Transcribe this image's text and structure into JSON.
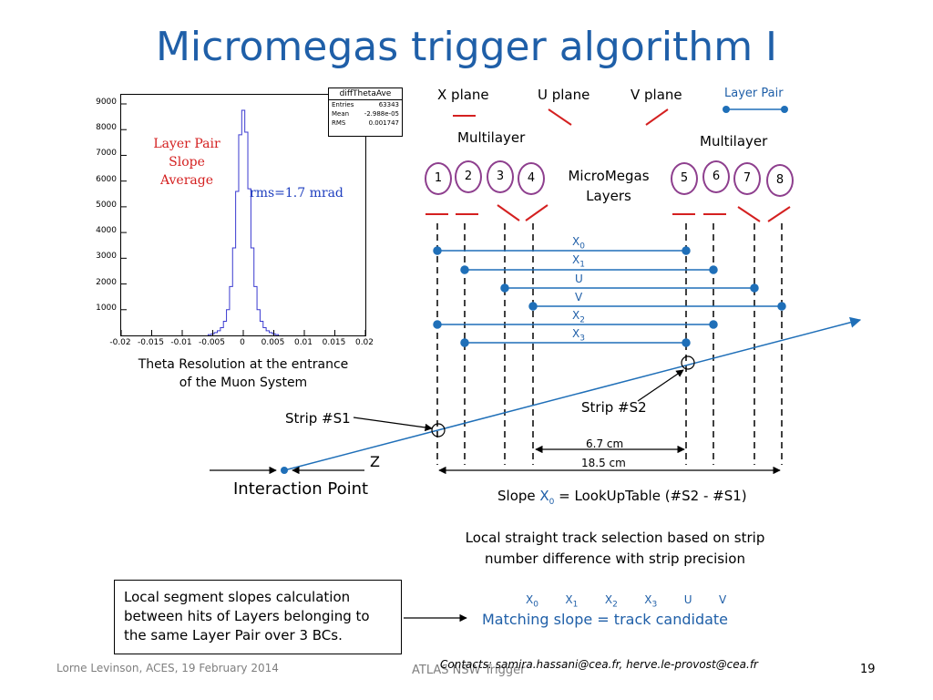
{
  "title": "Micromegas trigger algorithm I",
  "histogram": {
    "stats_title": "diffThetaAve",
    "stats": [
      {
        "name": "Entries",
        "value": "63343"
      },
      {
        "name": "Mean",
        "value": "-2.988e-05"
      },
      {
        "name": "RMS",
        "value": "0.001747"
      }
    ],
    "annotation_lines": [
      "Layer Pair",
      "Slope",
      "Average"
    ],
    "rms_label": "rms=1.7 mrad",
    "caption_line1": "Theta Resolution at the entrance",
    "caption_line2": "of the Muon System"
  },
  "chart_data": {
    "type": "histogram",
    "title": "",
    "xlabel": "",
    "ylabel": "",
    "xlim": [
      -0.02,
      0.02
    ],
    "ylim": [
      0,
      9000
    ],
    "x_ticks": [
      "-0.02",
      "-0.015",
      "-0.01",
      "-0.005",
      "0",
      "0.005",
      "0.01",
      "0.015",
      "0.02"
    ],
    "y_ticks": [
      "1000",
      "2000",
      "3000",
      "4000",
      "5000",
      "6000",
      "7000",
      "8000",
      "9000"
    ],
    "x": [
      -0.0055,
      -0.005,
      -0.0045,
      -0.004,
      -0.0035,
      -0.003,
      -0.0025,
      -0.002,
      -0.0015,
      -0.001,
      -0.0005,
      0.0,
      0.0005,
      0.001,
      0.0015,
      0.002,
      0.0025,
      0.003,
      0.0035,
      0.004,
      0.0045,
      0.005,
      0.0055
    ],
    "values": [
      30,
      60,
      110,
      180,
      300,
      550,
      1000,
      1900,
      3400,
      5600,
      7800,
      8750,
      7900,
      5700,
      3400,
      1900,
      1000,
      550,
      300,
      180,
      110,
      60,
      30
    ]
  },
  "detector": {
    "planes": {
      "x": "X plane",
      "u": "U plane",
      "v": "V plane"
    },
    "layer_pair_legend": "Layer Pair",
    "multilayer_left": "Multilayer",
    "multilayer_right": "Multilayer",
    "micromegas_line1": "MicroMegas",
    "micromegas_line2": "Layers",
    "layers": [
      "1",
      "2",
      "3",
      "4",
      "5",
      "6",
      "7",
      "8"
    ],
    "pairs": [
      {
        "name": "X",
        "sub": "0"
      },
      {
        "name": "X",
        "sub": "1"
      },
      {
        "name": "U",
        "sub": ""
      },
      {
        "name": "V",
        "sub": ""
      },
      {
        "name": "X",
        "sub": "2"
      },
      {
        "name": "X",
        "sub": "3"
      }
    ],
    "strip_s1": "Strip #S1",
    "strip_s2": "Strip #S2",
    "z_label": "Z",
    "interaction_point": "Interaction Point",
    "dist_short": "6.7 cm",
    "dist_long": "18.5 cm",
    "slope_prefix": "Slope ",
    "slope_var": "X",
    "slope_sub": "0",
    "slope_suffix": " = LookUpTable (#S2 - #S1)"
  },
  "text": {
    "local_track_line1": "Local straight track selection based on strip",
    "local_track_line2": "number difference with strip precision",
    "note_lines": [
      "Local segment slopes calculation",
      "between hits of  Layers belonging to",
      "the same Layer Pair over 3 BCs."
    ],
    "matching_list": [
      {
        "name": "X",
        "sub": "0"
      },
      {
        "name": "X",
        "sub": "1"
      },
      {
        "name": "X",
        "sub": "2"
      },
      {
        "name": "X",
        "sub": "3"
      },
      {
        "name": "U",
        "sub": ""
      },
      {
        "name": "V",
        "sub": ""
      }
    ],
    "matching": "Matching slope = track candidate"
  },
  "footer": {
    "left": "Lorne Levinson, ACES, 19 February 2014",
    "center_behind": "ATLAS NSW Trigger",
    "contacts": "Contacts: samira.hassani@cea.fr, herve.le-provost@cea.fr",
    "page": "19"
  },
  "colors": {
    "title": "#1f5fa8",
    "diagram_line": "#1f6fb8",
    "plane_mark": "#d42020",
    "layer_ring": "#8e3f8e",
    "histogram": "#3a3ad0"
  }
}
